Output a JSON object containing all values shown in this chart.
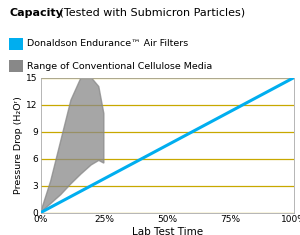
{
  "title_bold": "Capacity",
  "title_regular": " (Tested with Submicron Particles)",
  "legend_line": "Donaldson Endurance™ Air Filters",
  "legend_fill": "Range of Conventional Cellulose Media",
  "xlabel": "Lab Test Time",
  "ylabel": "Pressure Drop (H₂Oʳ)",
  "xlim": [
    0,
    100
  ],
  "ylim": [
    0,
    15
  ],
  "yticks": [
    0,
    3,
    6,
    9,
    12,
    15
  ],
  "xtick_labels": [
    "0%",
    "25%",
    "50%",
    "75%",
    "100%"
  ],
  "xtick_vals": [
    0,
    25,
    50,
    75,
    100
  ],
  "blue_line_x": [
    0,
    100
  ],
  "blue_line_y": [
    0,
    15.0
  ],
  "blue_color": "#00AEEF",
  "gray_color": "#888888",
  "grid_color": "#C8A800",
  "bg_color": "#FFFFFF",
  "outer_bg": "#FFFFFF",
  "border_color": "#C8A800",
  "gray_upper_x": [
    0,
    4,
    8,
    12,
    16,
    20,
    23,
    25
  ],
  "gray_upper_y": [
    0,
    3.5,
    8.0,
    12.5,
    15.0,
    15.0,
    14.0,
    11.0
  ],
  "gray_lower_x": [
    0,
    4,
    8,
    12,
    16,
    20,
    23,
    25
  ],
  "gray_lower_y": [
    0,
    1.0,
    2.0,
    3.2,
    4.3,
    5.3,
    5.8,
    5.5
  ]
}
